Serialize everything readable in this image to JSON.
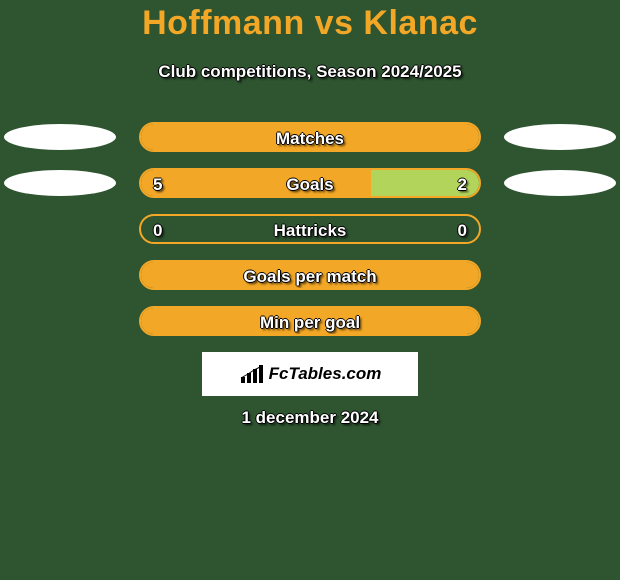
{
  "background_color": "#2e5430",
  "title": {
    "text": "Hoffmann vs Klanac",
    "color": "#f2a726",
    "fontsize": 34,
    "fontweight": 800
  },
  "subtitle": {
    "text": "Club competitions, Season 2024/2025",
    "color": "#ffffff",
    "fontsize": 17
  },
  "bar_style": {
    "track_width": 342,
    "track_height": 30,
    "border_radius": 15,
    "border_color": "#f2a726",
    "border_width": 2,
    "left_fill": "#f2a726",
    "right_fill": "#b3d45a",
    "label_color": "#ffffff",
    "value_color": "#ffffff",
    "fontsize": 17
  },
  "ellipse": {
    "color": "#ffffff",
    "width": 112,
    "height": 26
  },
  "rows": [
    {
      "label": "Matches",
      "left_value": "",
      "right_value": "",
      "left_pct": 100,
      "right_pct": 0,
      "show_ellipses": true,
      "show_values": false
    },
    {
      "label": "Goals",
      "left_value": "5",
      "right_value": "2",
      "left_pct": 68,
      "right_pct": 32,
      "show_ellipses": true,
      "show_values": true
    },
    {
      "label": "Hattricks",
      "left_value": "0",
      "right_value": "0",
      "left_pct": 0,
      "right_pct": 0,
      "show_ellipses": false,
      "show_values": true
    },
    {
      "label": "Goals per match",
      "left_value": "",
      "right_value": "",
      "left_pct": 100,
      "right_pct": 0,
      "show_ellipses": false,
      "show_values": false
    },
    {
      "label": "Min per goal",
      "left_value": "",
      "right_value": "",
      "left_pct": 100,
      "right_pct": 0,
      "show_ellipses": false,
      "show_values": false
    }
  ],
  "logo": {
    "text": "FcTables.com",
    "box_bg": "#ffffff",
    "text_color": "#000000",
    "fontsize": 17
  },
  "date": {
    "text": "1 december 2024",
    "color": "#ffffff",
    "fontsize": 17
  }
}
